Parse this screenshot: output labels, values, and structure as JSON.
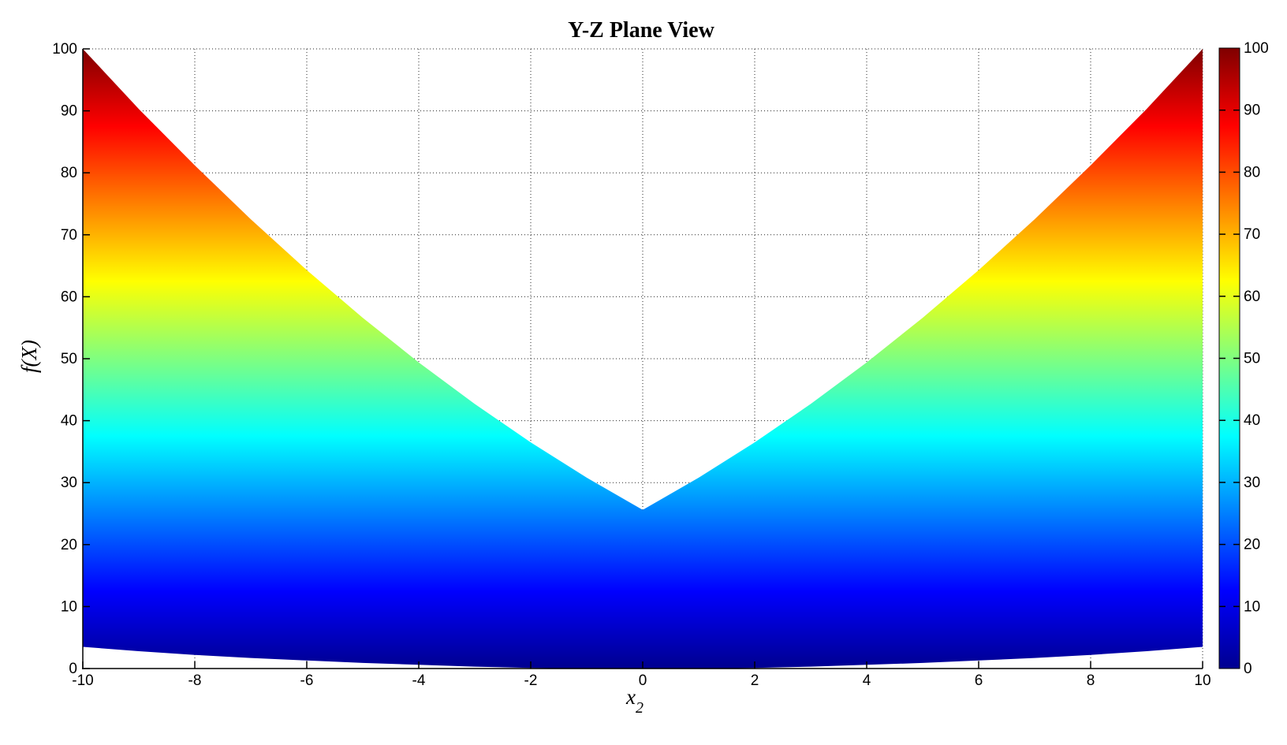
{
  "figure": {
    "background": "#ffffff"
  },
  "chart_data": {
    "type": "area",
    "title": "Y-Z Plane View",
    "xlabel": "x_2",
    "xlabel_base": "x",
    "xlabel_sub": "2",
    "ylabel": "f(X)",
    "xlim": [
      -10,
      10
    ],
    "ylim": [
      0,
      100
    ],
    "x_ticks": [
      -10,
      -8,
      -6,
      -4,
      -2,
      0,
      2,
      4,
      6,
      8,
      10
    ],
    "y_ticks": [
      0,
      10,
      20,
      30,
      40,
      50,
      60,
      70,
      80,
      90,
      100
    ],
    "grid": "dotted",
    "legend_position": "none",
    "silhouette": {
      "x": [
        -10,
        -9,
        -8,
        -7,
        -6,
        -5,
        -4,
        -3,
        -2,
        -1,
        0,
        1,
        2,
        3,
        4,
        5,
        6,
        7,
        8,
        9,
        10
      ],
      "upper": [
        100,
        90.3,
        81.2,
        72.5,
        64.3,
        56.6,
        49.4,
        42.7,
        36.5,
        30.8,
        25.6,
        30.8,
        36.5,
        42.7,
        49.4,
        56.6,
        64.3,
        72.5,
        81.2,
        90.3,
        100
      ],
      "lower": [
        3.5,
        2.8,
        2.2,
        1.7,
        1.3,
        0.9,
        0.6,
        0.3,
        0.1,
        0,
        0,
        0,
        0.1,
        0.3,
        0.6,
        0.9,
        1.3,
        1.7,
        2.2,
        2.8,
        3.5
      ]
    },
    "colorbar": {
      "min": 0,
      "max": 100,
      "ticks": [
        0,
        10,
        20,
        30,
        40,
        50,
        60,
        70,
        80,
        90,
        100
      ],
      "position": "right"
    },
    "colormap": {
      "name": "jet",
      "stops": [
        {
          "value": 0,
          "color": "#00008F"
        },
        {
          "value": 12.5,
          "color": "#0000FF"
        },
        {
          "value": 37.5,
          "color": "#00FFFF"
        },
        {
          "value": 62.5,
          "color": "#FFFF00"
        },
        {
          "value": 87.5,
          "color": "#FF0000"
        },
        {
          "value": 100,
          "color": "#7F0000"
        }
      ]
    }
  }
}
